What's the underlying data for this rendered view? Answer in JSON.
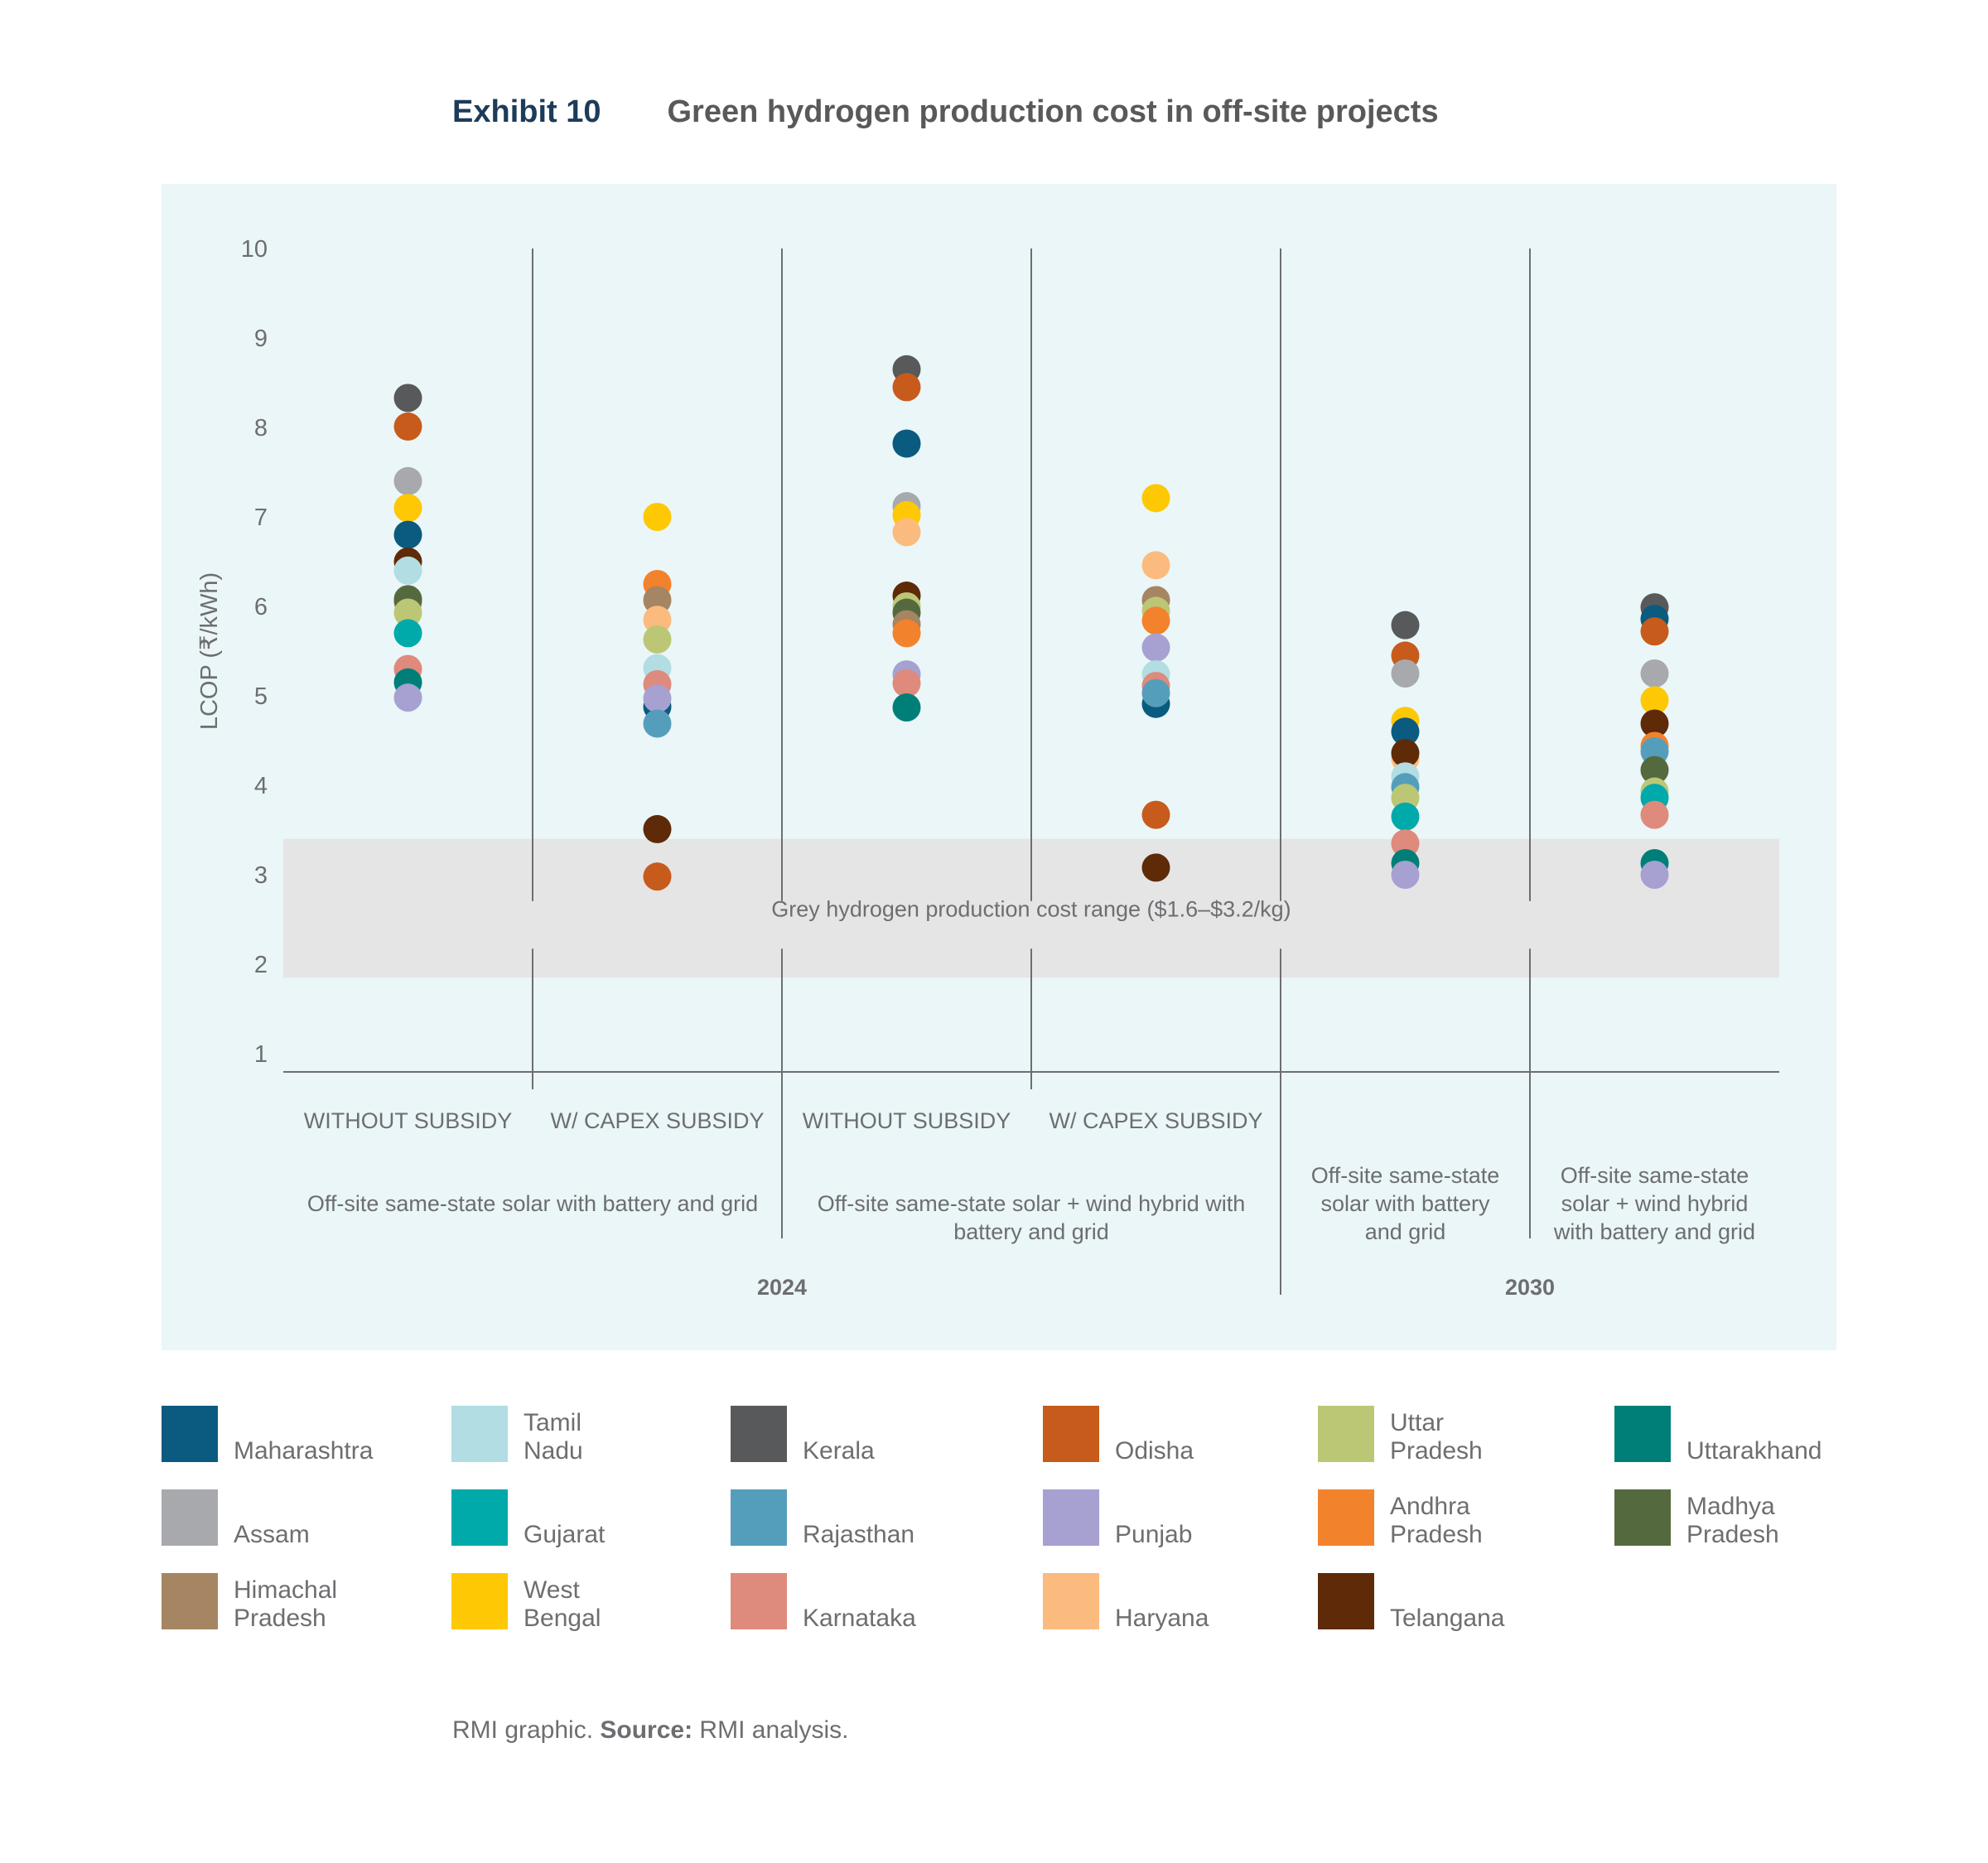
{
  "header": {
    "exhibit": "Exhibit 10",
    "title": "Green hydrogen production cost in off-site projects"
  },
  "chart_data": {
    "type": "scatter",
    "ylabel": "LCOP (₹/kWh)",
    "ylim": [
      1,
      10
    ],
    "yticks": [
      1,
      2,
      3,
      4,
      5,
      6,
      7,
      8,
      9,
      10
    ],
    "grid": false,
    "grey_band": {
      "label": "Grey hydrogen production cost range ($1.6–$3.2/kg)",
      "range": [
        1.85,
        3.4
      ]
    },
    "columns": [
      {
        "label": "WITHOUT SUBSIDY",
        "group": "Off-site same-state solar with battery and grid",
        "year": "2024",
        "values": {
          "Kerala": 8.33,
          "Odisha": 8.01,
          "Assam": 7.4,
          "West Bengal": 7.1,
          "Maharashtra": 6.8,
          "Telangana": 6.5,
          "Tamil Nadu": 6.4,
          "Himachal Pradesh": 6.05,
          "Madhya Pradesh": 6.08,
          "Uttar Pradesh": 5.93,
          "Gujarat": 5.7,
          "Karnataka": 5.3,
          "Uttarakhand": 5.15,
          "Punjab": 4.98
        }
      },
      {
        "label": "W/ CAPEX SUBSIDY",
        "group": "Off-site same-state solar with battery and grid",
        "year": "2024",
        "values": {
          "West Bengal": 7.0,
          "Andhra Pradesh": 6.25,
          "Himachal Pradesh": 6.07,
          "Haryana": 5.85,
          "Uttar Pradesh": 5.63,
          "Tamil Nadu": 5.31,
          "Karnataka": 5.13,
          "Maharashtra": 4.88,
          "Punjab": 4.97,
          "Rajasthan": 4.69,
          "Telangana": 3.51,
          "Odisha": 2.98
        }
      },
      {
        "label": "WITHOUT SUBSIDY",
        "group": "Off-site same-state solar + wind hybrid with battery and grid",
        "year": "2024",
        "values": {
          "Kerala": 8.65,
          "Odisha": 8.45,
          "Maharashtra": 7.82,
          "Assam": 7.12,
          "West Bengal": 7.02,
          "Haryana": 6.83,
          "Telangana": 6.12,
          "Uttar Pradesh": 6.0,
          "Madhya Pradesh": 5.93,
          "Himachal Pradesh": 5.8,
          "Andhra Pradesh": 5.7,
          "Punjab": 5.24,
          "Karnataka": 5.14,
          "Uttarakhand": 4.87
        }
      },
      {
        "label": "W/ CAPEX SUBSIDY",
        "group": "Off-site same-state solar + wind hybrid with battery and grid",
        "year": "2024",
        "values": {
          "West Bengal": 7.21,
          "Haryana": 6.46,
          "Himachal Pradesh": 6.07,
          "Uttar Pradesh": 5.95,
          "Andhra Pradesh": 5.84,
          "Punjab": 5.54,
          "Tamil Nadu": 5.24,
          "Karnataka": 5.11,
          "Maharashtra": 4.91,
          "Rajasthan": 5.03,
          "Odisha": 3.67,
          "Telangana": 3.08
        }
      },
      {
        "label": "",
        "group": "Off-site same-state solar with battery and grid",
        "year": "2030",
        "values": {
          "Kerala": 5.79,
          "Odisha": 5.45,
          "Assam": 5.25,
          "West Bengal": 4.72,
          "Maharashtra": 4.6,
          "Haryana": 4.3,
          "Telangana": 4.36,
          "Tamil Nadu": 4.1,
          "Rajasthan": 3.98,
          "Uttar Pradesh": 3.86,
          "Gujarat": 3.65,
          "Karnataka": 3.35,
          "Uttarakhand": 3.13,
          "Punjab": 3.0
        }
      },
      {
        "label": "",
        "group": "Off-site same-state solar + wind hybrid with battery and grid",
        "year": "2030",
        "values": {
          "Kerala": 5.99,
          "Maharashtra": 5.86,
          "Odisha": 5.72,
          "Assam": 5.25,
          "West Bengal": 4.95,
          "Telangana": 4.69,
          "Andhra Pradesh": 4.44,
          "Rajasthan": 4.38,
          "Madhya Pradesh": 4.17,
          "Uttar Pradesh": 3.93,
          "Gujarat": 3.86,
          "Karnataka": 3.67,
          "Uttarakhand": 3.13,
          "Punjab": 3.0
        }
      }
    ],
    "group_labels": [
      {
        "text": "Off-site same-state solar with battery and grid"
      },
      {
        "text": "Off-site same-state solar + wind hybrid with battery and grid"
      },
      {
        "text": "Off-site same-state solar with battery and grid"
      },
      {
        "text": "Off-site same-state solar + wind hybrid with battery and grid"
      }
    ],
    "year_labels": [
      "2024",
      "2030"
    ],
    "legend": [
      {
        "name": "Maharashtra",
        "color": "#0b5a80"
      },
      {
        "name": "Tamil Nadu",
        "color": "#b1dde3"
      },
      {
        "name": "Kerala",
        "color": "#58595b"
      },
      {
        "name": "Odisha",
        "color": "#c75b1c"
      },
      {
        "name": "Uttar Pradesh",
        "color": "#bcc775"
      },
      {
        "name": "Uttarakhand",
        "color": "#007f78"
      },
      {
        "name": "Assam",
        "color": "#a7a9ac"
      },
      {
        "name": "Gujarat",
        "color": "#00a9aa"
      },
      {
        "name": "Rajasthan",
        "color": "#559ebb"
      },
      {
        "name": "Punjab",
        "color": "#a6a1d1"
      },
      {
        "name": "Andhra Pradesh",
        "color": "#f3822c"
      },
      {
        "name": "Madhya Pradesh",
        "color": "#546a3e"
      },
      {
        "name": "Himachal Pradesh",
        "color": "#a68562"
      },
      {
        "name": "West Bengal",
        "color": "#fec804"
      },
      {
        "name": "Karnataka",
        "color": "#de8a7c"
      },
      {
        "name": "Haryana",
        "color": "#fbbb7e"
      },
      {
        "name": "Telangana",
        "color": "#5e2a08"
      }
    ]
  },
  "footer": {
    "prefix": "RMI graphic. ",
    "source_label": "Source:",
    "source_text": " RMI analysis."
  }
}
